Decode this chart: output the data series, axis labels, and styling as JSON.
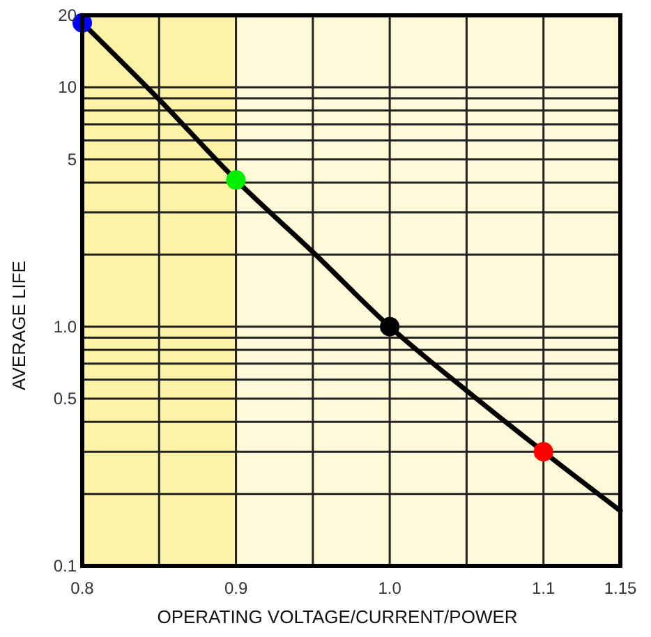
{
  "chart_data": {
    "type": "line",
    "xlabel": "OPERATING VOLTAGE/CURRENT/POWER",
    "ylabel": "AVERAGE LIFE",
    "log": "y",
    "grid": true,
    "xlim": [
      0.8,
      1.15
    ],
    "xticks": [
      0.8,
      {
        "value": 0.85,
        "label": null
      },
      0.9,
      {
        "value": 0.95,
        "label": null
      },
      "1.0",
      {
        "value": 1.05,
        "label": null
      },
      1.1,
      1.15
    ],
    "ylim": [
      0.1,
      20
    ],
    "yticks": [
      0.1,
      {
        "value": 0.2,
        "label": null
      },
      {
        "value": 0.3,
        "label": null
      },
      {
        "value": 0.4,
        "label": null
      },
      0.5,
      {
        "value": 0.6,
        "label": null
      },
      {
        "value": 0.7,
        "label": null
      },
      {
        "value": 0.8,
        "label": null
      },
      {
        "value": 0.9,
        "label": null
      },
      {
        "value": 1,
        "label": "1.0"
      },
      {
        "value": 2,
        "label": null
      },
      {
        "value": 3,
        "label": null
      },
      {
        "value": 4,
        "label": null
      },
      5,
      {
        "value": 6,
        "label": null
      },
      {
        "value": 7,
        "label": null
      },
      {
        "value": 8,
        "label": null
      },
      {
        "value": 9,
        "label": null
      },
      10,
      20
    ],
    "bands": [
      {
        "axis": "x",
        "from": 0.8,
        "to": 0.9,
        "color": "#fdf3a6"
      }
    ],
    "series": [
      {
        "color": "#000000",
        "marker": "none",
        "line_style": "solid",
        "x": [
          0.8,
          0.85,
          0.9,
          0.95,
          1.0,
          1.05,
          1.1,
          1.15
        ],
        "values": [
          18.6,
          8.9,
          4.1,
          2.05,
          1.0,
          0.54,
          0.3,
          0.17
        ]
      },
      {
        "type": "scatter",
        "marker": "circle",
        "x": [
          0.8,
          0.9,
          1.0,
          1.1
        ],
        "values": [
          18.6,
          4.1,
          1.0,
          0.3
        ],
        "colors": [
          "#0000ff",
          "#00ee00",
          "#000000",
          "#ff0000"
        ]
      }
    ]
  }
}
